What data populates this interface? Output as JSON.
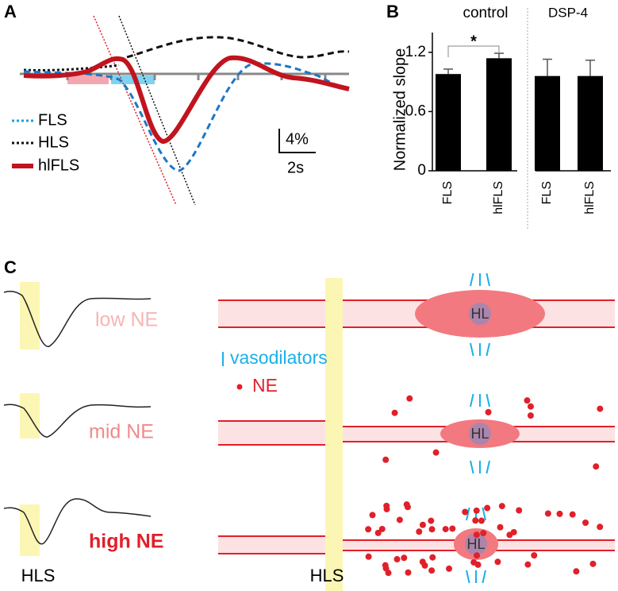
{
  "panel_a": {
    "label": "A",
    "legend": [
      "FLS",
      "HLS",
      "hlFLS"
    ],
    "scale_y": "4%",
    "scale_x": "2s"
  },
  "chart_data": {
    "type": "bar",
    "label": "B",
    "y_label": "Normalized slope",
    "groups": [
      "control",
      "DSP-4"
    ],
    "categories": [
      "FLS",
      "hlFLS",
      "FLS",
      "hlFLS"
    ],
    "values": [
      0.98,
      1.14,
      0.96,
      0.96
    ],
    "errors": [
      0.05,
      0.05,
      0.17,
      0.16
    ],
    "color": "#000000",
    "ylim": [
      0,
      1.4
    ],
    "yticks": [
      0,
      0.6,
      1.2
    ],
    "significance": "*"
  },
  "panel_c": {
    "label": "C",
    "traces": [
      "low NE",
      "mid NE",
      "high NE"
    ],
    "stimulus": "HLS",
    "legend": [
      "vasodilators",
      "NE"
    ],
    "stimulus_bar": "HLS",
    "site": [
      "HL",
      "HL",
      "HL"
    ]
  }
}
